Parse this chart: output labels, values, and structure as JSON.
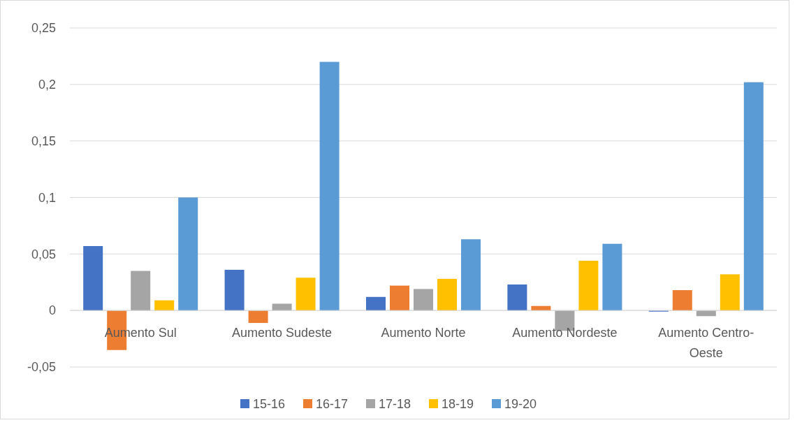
{
  "chart_data": {
    "type": "bar",
    "categories": [
      "Aumento Sul",
      "Aumento Sudeste",
      "Aumento Norte",
      "Aumento Nordeste",
      "Aumento Centro-Oeste"
    ],
    "series": [
      {
        "name": "15-16",
        "color": "#4472c4",
        "values": [
          0.057,
          0.036,
          0.012,
          0.023,
          -0.001
        ]
      },
      {
        "name": "16-17",
        "color": "#ed7d31",
        "values": [
          -0.035,
          -0.011,
          0.022,
          0.004,
          0.018
        ]
      },
      {
        "name": "17-18",
        "color": "#a5a5a5",
        "values": [
          0.035,
          0.006,
          0.019,
          -0.018,
          -0.005
        ]
      },
      {
        "name": "18-19",
        "color": "#ffc000",
        "values": [
          0.009,
          0.029,
          0.028,
          0.044,
          0.032
        ]
      },
      {
        "name": "19-20",
        "color": "#5b9bd5",
        "values": [
          0.1,
          0.22,
          0.063,
          0.059,
          0.202
        ]
      }
    ],
    "ylim": [
      -0.05,
      0.25
    ],
    "yticks": [
      {
        "value": -0.05,
        "label": "-0,05"
      },
      {
        "value": 0,
        "label": "0"
      },
      {
        "value": 0.05,
        "label": "0,05"
      },
      {
        "value": 0.1,
        "label": "0,1"
      },
      {
        "value": 0.15,
        "label": "0,15"
      },
      {
        "value": 0.2,
        "label": "0,2"
      },
      {
        "value": 0.25,
        "label": "0,25"
      }
    ],
    "grid": "y",
    "legend": "bottom"
  }
}
